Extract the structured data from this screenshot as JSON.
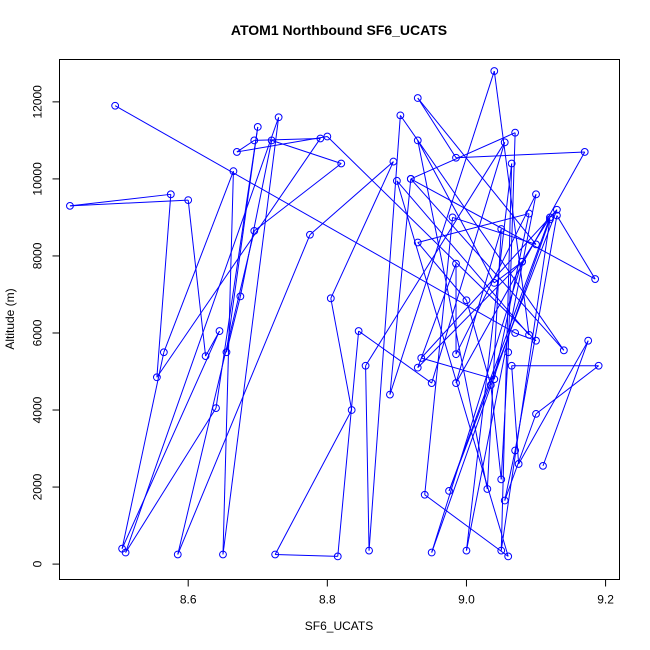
{
  "chart_data": {
    "type": "line",
    "title": "ATOM1 Northbound SF6_UCATS",
    "xlabel": "SF6_UCATS",
    "ylabel": "Altitude (m)",
    "xlim": [
      8.415,
      9.22
    ],
    "ylim": [
      -400,
      13100
    ],
    "x_ticks": [
      8.6,
      8.8,
      9.0,
      9.2
    ],
    "x_tick_labels": [
      "8.6",
      "8.8",
      "9.0",
      "9.2"
    ],
    "y_ticks": [
      0,
      2000,
      4000,
      6000,
      8000,
      10000,
      12000
    ],
    "y_tick_labels": [
      "0",
      "2000",
      "4000",
      "6000",
      "8000",
      "10000",
      "12000"
    ],
    "grid": false,
    "marker": "open-circle",
    "color": "#0000ff",
    "series": [
      {
        "x": [
          8.495,
          9.07,
          9.1,
          8.8,
          8.67,
          8.695,
          8.79,
          8.555,
          8.575,
          8.43,
          8.6,
          8.625,
          8.645,
          8.505,
          8.565,
          8.665,
          8.65,
          8.73,
          8.51,
          8.64,
          8.7,
          8.655,
          8.675,
          8.72,
          8.82,
          8.695,
          8.585,
          8.775,
          8.895,
          8.805,
          8.835,
          8.725,
          8.815,
          8.845,
          8.95,
          9.055,
          8.855,
          8.86,
          8.905,
          9.14,
          8.92,
          8.89,
          9.04,
          9.09,
          8.9,
          9.06,
          8.94,
          8.98,
          9.1,
          8.93,
          8.985,
          9.17,
          8.985,
          9.05,
          9.03,
          8.93,
          9.04,
          9.08,
          8.95,
          9.12,
          9.05,
          9.065,
          9.0,
          9.1,
          8.985,
          8.985,
          8.93,
          9.08,
          9.12,
          8.975,
          9.13,
          8.935,
          9.04,
          9.09,
          8.93,
          9.0,
          9.035,
          9.05,
          9.06,
          9.07,
          8.92,
          9.185,
          9.13,
          9.07,
          9.055,
          9.1,
          9.19,
          9.065,
          9.075,
          9.175,
          9.11
        ],
        "y": [
          11900,
          6000,
          5800,
          11100,
          10700,
          11000,
          11050,
          4850,
          9600,
          9300,
          9450,
          5400,
          6050,
          400,
          5500,
          10200,
          250,
          11600,
          300,
          4050,
          11350,
          5500,
          6950,
          11000,
          10400,
          8650,
          250,
          8550,
          10450,
          6900,
          4000,
          250,
          200,
          6050,
          4700,
          10950,
          5150,
          350,
          11650,
          5550,
          10000,
          4400,
          12800,
          5950,
          9950,
          200,
          1800,
          9000,
          8300,
          12100,
          10550,
          10700,
          4700,
          8700,
          1950,
          11000,
          7300,
          7850,
          300,
          8950,
          350,
          10400,
          350,
          9600,
          5450,
          7800,
          5100,
          7850,
          9000,
          1900,
          9200,
          5350,
          4800,
          9100,
          8350,
          6850,
          4650,
          2200,
          5500,
          11200,
          10000,
          7400,
          9050,
          2950,
          1650,
          3900,
          5150,
          5150,
          2600,
          5800,
          2550
        ]
      }
    ]
  }
}
